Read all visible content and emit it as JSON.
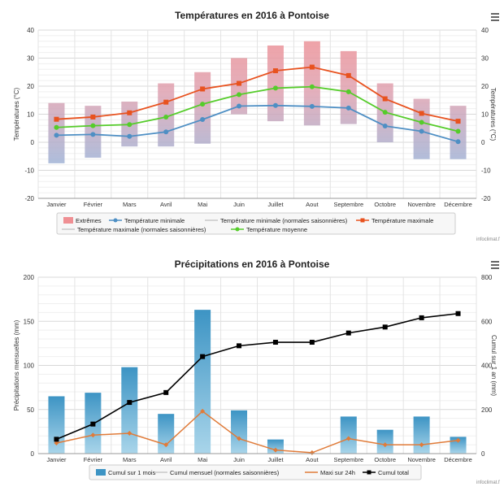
{
  "months": [
    "Janvier",
    "Février",
    "Mars",
    "Avril",
    "Mai",
    "Juin",
    "Juillet",
    "Aout",
    "Septembre",
    "Octobre",
    "Novembre",
    "Décembre"
  ],
  "credit": "infoclimat.f",
  "chart_data": [
    {
      "type": "bar+line",
      "title": "Températures en 2016 à Pontoise",
      "ylabel_left": "Températures (°C)",
      "ylabel_right": "Températures (°C)",
      "ylim": [
        -20,
        40
      ],
      "yticks": [
        -20,
        -10,
        0,
        10,
        20,
        30,
        40
      ],
      "extremes": [
        [
          -7.5,
          14
        ],
        [
          -5.5,
          13
        ],
        [
          -1.5,
          14.5
        ],
        [
          -1.5,
          21
        ],
        [
          -0.5,
          25
        ],
        [
          10,
          30
        ],
        [
          7.5,
          34.5
        ],
        [
          6,
          36
        ],
        [
          6.5,
          32.5
        ],
        [
          0,
          21
        ],
        [
          -6,
          15.5
        ],
        [
          -6,
          13
        ]
      ],
      "series": [
        {
          "name": "Température minimale",
          "color": "#4e8fc4",
          "values": [
            2.5,
            2.8,
            2.1,
            3.7,
            8.1,
            12.9,
            13.1,
            12.8,
            12.2,
            5.8,
            3.9,
            0.2
          ]
        },
        {
          "name": "Température maximale",
          "color": "#e8521f",
          "values": [
            8.2,
            9.0,
            10.5,
            14.3,
            19.0,
            21.0,
            25.5,
            26.8,
            23.8,
            15.5,
            10.3,
            7.5
          ]
        },
        {
          "name": "Température moyenne",
          "color": "#55cc2a",
          "values": [
            5.3,
            5.9,
            6.3,
            9.0,
            13.6,
            17.0,
            19.3,
            19.8,
            18.0,
            10.7,
            7.1,
            3.9
          ]
        }
      ],
      "legend": [
        "Extrêmes",
        "Température minimale",
        "Température minimale (normales saisonnières)",
        "Température maximale",
        "Température maximale (normales saisonnières)",
        "Température moyenne"
      ],
      "colors": {
        "extremes_top": "#ef8f93",
        "extremes_bottom": "#9ab4d9",
        "normal_line": "#c8c8c8"
      }
    },
    {
      "type": "bar+line",
      "title": "Précipitations en 2016 à Pontoise",
      "ylabel_left": "Précipitations mensuelles (mm)",
      "ylabel_right": "Cumul sur 1 an (mm)",
      "ylim_left": [
        0,
        200
      ],
      "ylim_right": [
        0,
        800
      ],
      "yticks_left": [
        0,
        50,
        100,
        150,
        200
      ],
      "yticks_right": [
        0,
        200,
        400,
        600,
        800
      ],
      "series": [
        {
          "name": "Cumul sur 1 mois",
          "color": "#5aaad2",
          "axis": "left",
          "values": [
            65,
            69,
            98,
            45,
            163,
            49,
            16,
            0,
            42,
            27,
            42,
            19
          ]
        },
        {
          "name": "Maxi sur 24h",
          "color": "#e07b39",
          "axis": "left",
          "values": [
            12,
            21,
            23,
            10,
            48,
            17,
            4,
            1,
            17,
            10,
            10,
            15
          ]
        },
        {
          "name": "Cumul total",
          "color": "#000000",
          "axis": "right",
          "values": [
            65,
            134,
            232,
            277,
            440,
            489,
            505,
            505,
            547,
            574,
            616,
            635
          ]
        }
      ],
      "legend": [
        "Cumul sur 1 mois",
        "Cumul mensuel (normales saisonnières)",
        "Maxi sur 24h",
        "Cumul total"
      ]
    }
  ]
}
